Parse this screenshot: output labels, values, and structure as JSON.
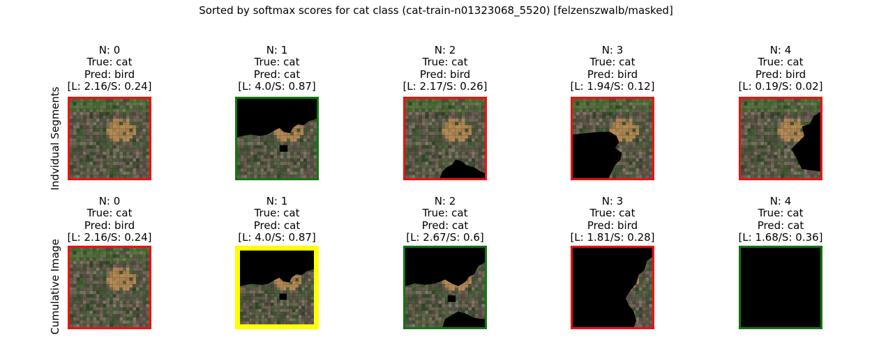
{
  "title": "Sorted by softmax scores for cat class (cat-train-n01323068_5520) [felzenszwalb/masked]",
  "row_labels": [
    "Indvidual Segments",
    "Cumulative Image"
  ],
  "colors": {
    "red": "#ee1111",
    "green": "#117711",
    "yellow": "#ffff00",
    "mask": "#000000"
  },
  "rows": [
    {
      "cells": [
        {
          "n": "N: 0",
          "true": "True: cat",
          "pred": "Pred: bird",
          "scores": "[L: 2.16/S: 0.24]",
          "border": "red",
          "mask": "none"
        },
        {
          "n": "N: 1",
          "true": "True: cat",
          "pred": "Pred: cat",
          "scores": "[L: 4.0/S: 0.87]",
          "border": "green",
          "mask": "top"
        },
        {
          "n": "N: 2",
          "true": "True: cat",
          "pred": "Pred: bird",
          "scores": "[L: 2.17/S: 0.26]",
          "border": "red",
          "mask": "bottom-right-blob"
        },
        {
          "n": "N: 3",
          "true": "True: cat",
          "pred": "Pred: bird",
          "scores": "[L: 1.94/S: 0.12]",
          "border": "red",
          "mask": "bottom-left"
        },
        {
          "n": "N: 4",
          "true": "True: cat",
          "pred": "Pred: bird",
          "scores": "[L: 0.19/S: 0.02]",
          "border": "red",
          "mask": "right-wedge"
        }
      ]
    },
    {
      "cells": [
        {
          "n": "N: 0",
          "true": "True: cat",
          "pred": "Pred: bird",
          "scores": "[L: 2.16/S: 0.24]",
          "border": "red",
          "mask": "none"
        },
        {
          "n": "N: 1",
          "true": "True: cat",
          "pred": "Pred: cat",
          "scores": "[L: 4.0/S: 0.87]",
          "border": "yellow",
          "mask": "top"
        },
        {
          "n": "N: 2",
          "true": "True: cat",
          "pred": "Pred: cat",
          "scores": "[L: 2.67/S: 0.6]",
          "border": "green",
          "mask": "top-and-bottom"
        },
        {
          "n": "N: 3",
          "true": "True: cat",
          "pred": "Pred: bird",
          "scores": "[L: 1.81/S: 0.28]",
          "border": "red",
          "mask": "right-strip"
        },
        {
          "n": "N: 4",
          "true": "True: cat",
          "pred": "Pred: cat",
          "scores": "[L: 1.68/S: 0.36]",
          "border": "green",
          "mask": "full"
        }
      ]
    }
  ]
}
